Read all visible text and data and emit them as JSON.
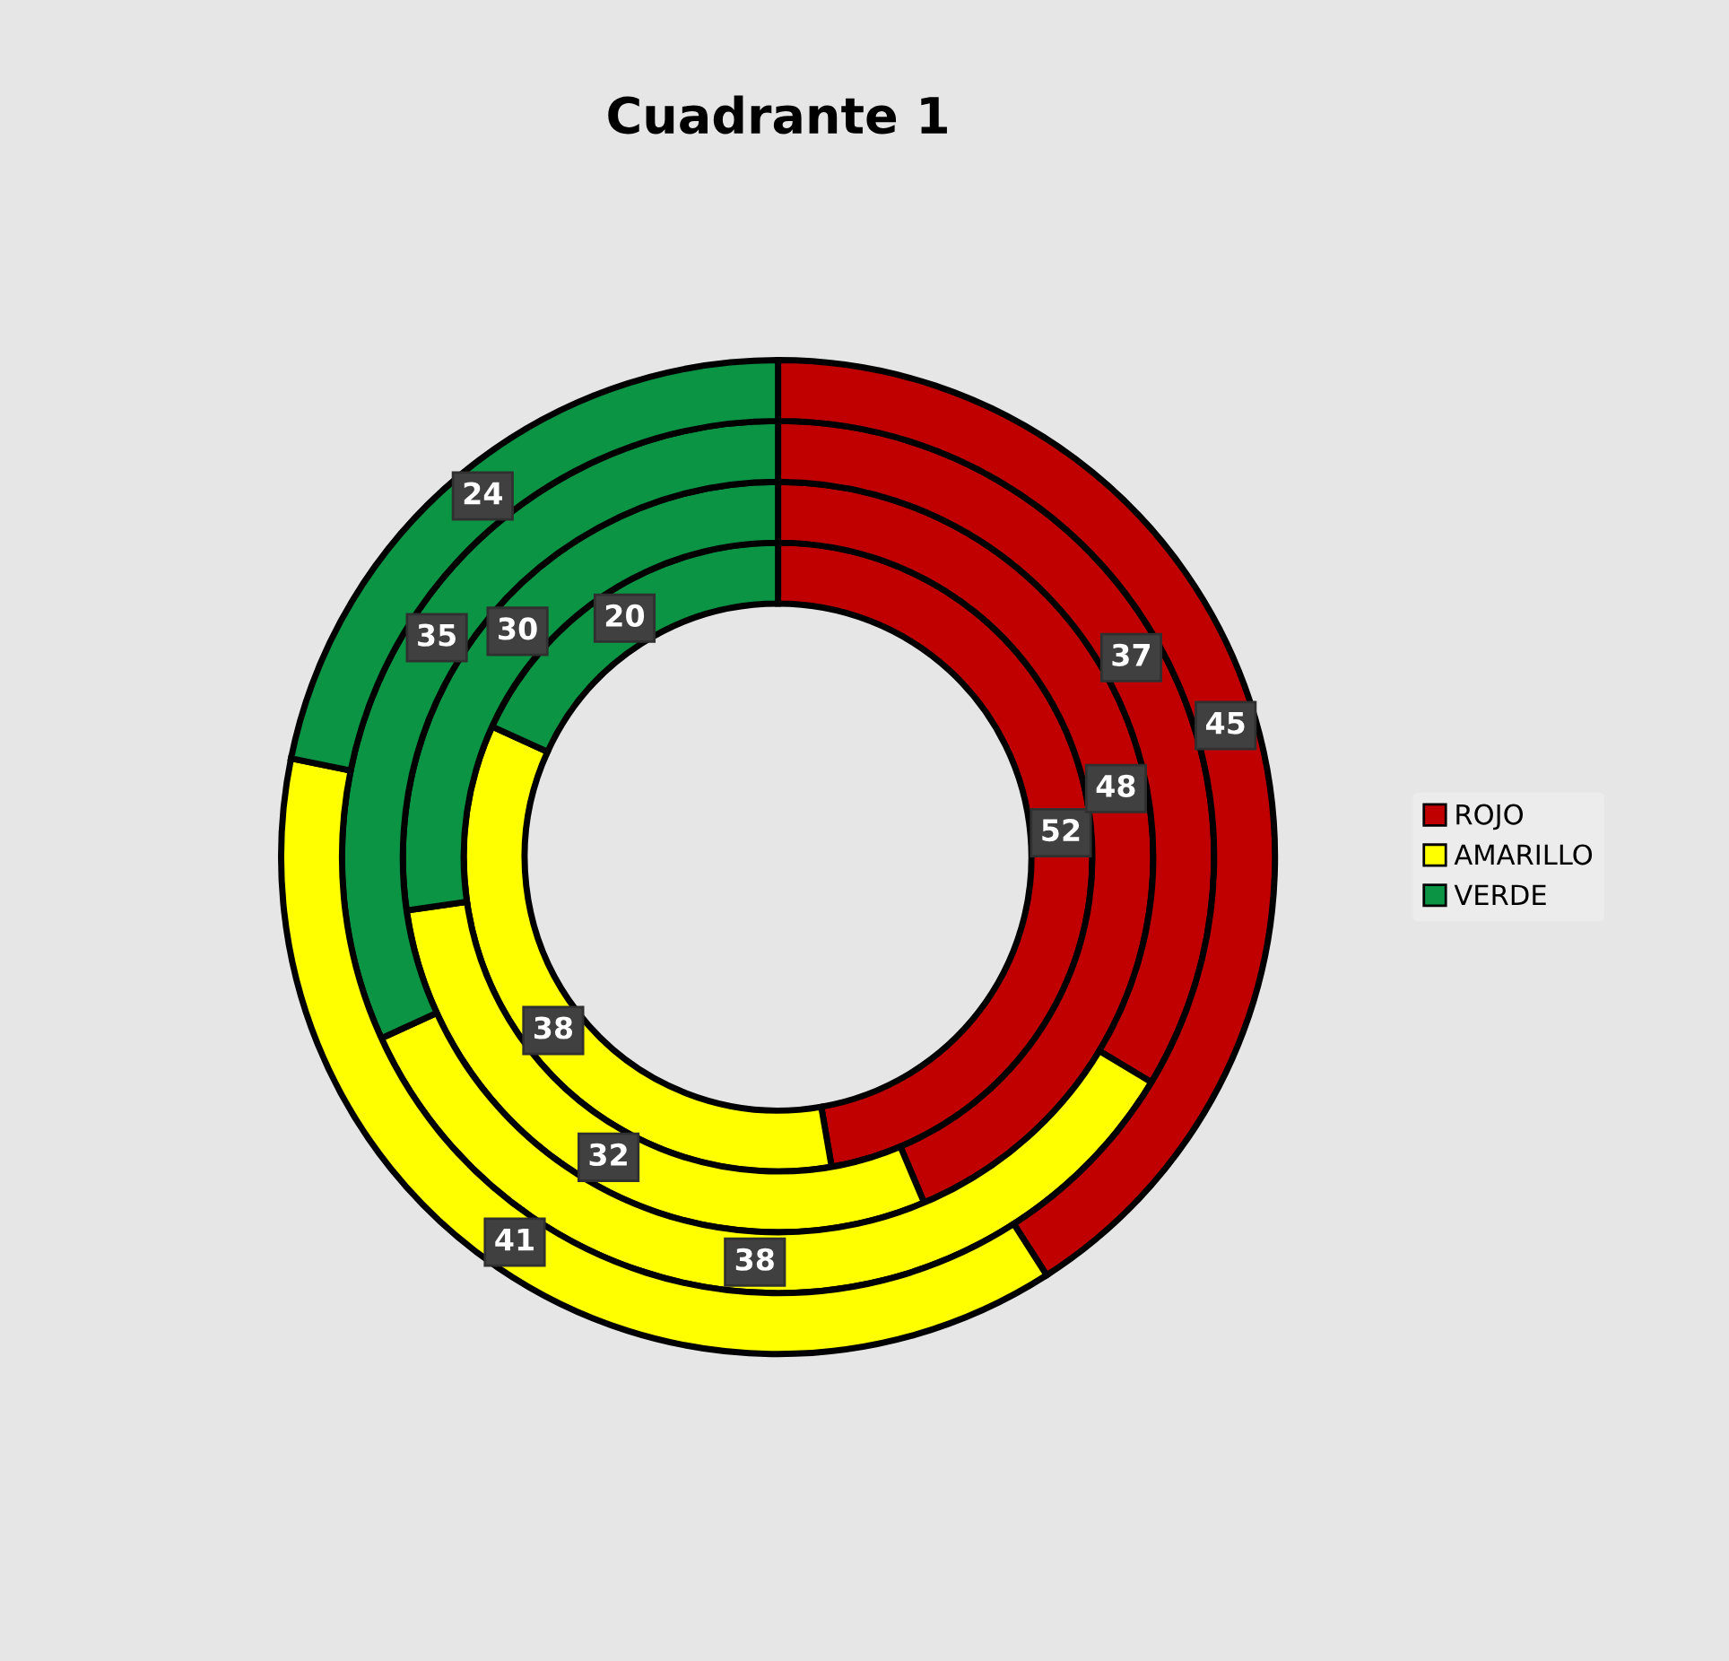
{
  "chart_data": {
    "type": "donut",
    "title": "Cuadrante 1",
    "categories": [
      "ROJO",
      "AMARILLO",
      "VERDE"
    ],
    "colors": [
      "#c00000",
      "#ffff00",
      "#0a9444"
    ],
    "series": [
      {
        "values": [
          52,
          38,
          20
        ]
      },
      {
        "values": [
          48,
          32,
          30
        ]
      },
      {
        "values": [
          37,
          38,
          35
        ]
      },
      {
        "values": [
          45,
          41,
          24
        ]
      }
    ],
    "data_labels": true,
    "legend": "right"
  }
}
